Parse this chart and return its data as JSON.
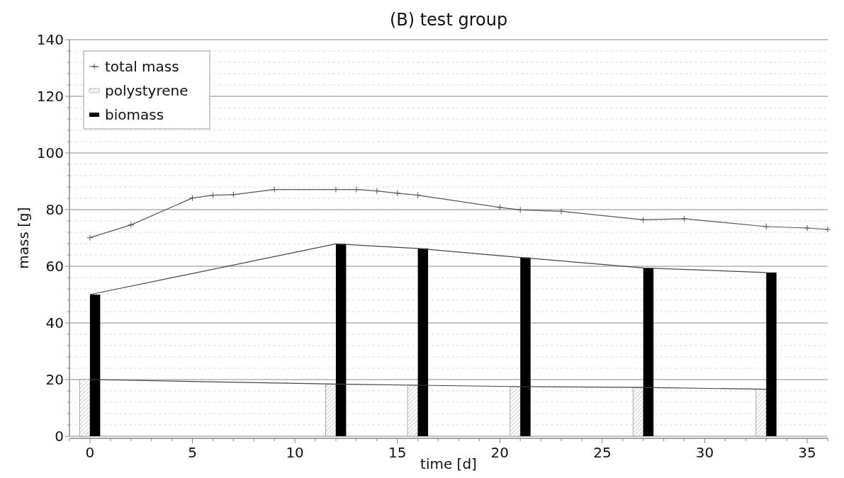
{
  "chart_data": {
    "type": "line",
    "title": "(B) test group",
    "xlabel": "time [d]",
    "ylabel": "mass [g]",
    "xlim": [
      -1,
      36
    ],
    "xticks": [
      {
        "value": -1,
        "label": null
      },
      0,
      {
        "value": 1,
        "label": null
      },
      {
        "value": 2,
        "label": null
      },
      {
        "value": 3,
        "label": null
      },
      {
        "value": 4,
        "label": null
      },
      5,
      {
        "value": 6,
        "label": null
      },
      {
        "value": 7,
        "label": null
      },
      {
        "value": 8,
        "label": null
      },
      {
        "value": 9,
        "label": null
      },
      10,
      {
        "value": 11,
        "label": null
      },
      {
        "value": 12,
        "label": null
      },
      {
        "value": 13,
        "label": null
      },
      {
        "value": 14,
        "label": null
      },
      15,
      {
        "value": 16,
        "label": null
      },
      {
        "value": 17,
        "label": null
      },
      {
        "value": 18,
        "label": null
      },
      {
        "value": 19,
        "label": null
      },
      20,
      {
        "value": 21,
        "label": null
      },
      {
        "value": 22,
        "label": null
      },
      {
        "value": 23,
        "label": null
      },
      {
        "value": 24,
        "label": null
      },
      25,
      {
        "value": 26,
        "label": null
      },
      {
        "value": 27,
        "label": null
      },
      {
        "value": 28,
        "label": null
      },
      {
        "value": 29,
        "label": null
      },
      30,
      {
        "value": 31,
        "label": null
      },
      {
        "value": 32,
        "label": null
      },
      {
        "value": 33,
        "label": null
      },
      {
        "value": 34,
        "label": null
      },
      35,
      {
        "value": 36,
        "label": null
      }
    ],
    "ylim": [
      0,
      140
    ],
    "yticks": [
      0,
      {
        "value": 4,
        "label": null
      },
      {
        "value": 8,
        "label": null
      },
      {
        "value": 12,
        "label": null
      },
      {
        "value": 16,
        "label": null
      },
      20,
      {
        "value": 24,
        "label": null
      },
      {
        "value": 28,
        "label": null
      },
      {
        "value": 32,
        "label": null
      },
      {
        "value": 36,
        "label": null
      },
      40,
      {
        "value": 44,
        "label": null
      },
      {
        "value": 48,
        "label": null
      },
      {
        "value": 52,
        "label": null
      },
      {
        "value": 56,
        "label": null
      },
      60,
      {
        "value": 64,
        "label": null
      },
      {
        "value": 68,
        "label": null
      },
      {
        "value": 72,
        "label": null
      },
      {
        "value": 76,
        "label": null
      },
      80,
      {
        "value": 84,
        "label": null
      },
      {
        "value": 88,
        "label": null
      },
      {
        "value": 92,
        "label": null
      },
      {
        "value": 96,
        "label": null
      },
      100,
      {
        "value": 104,
        "label": null
      },
      {
        "value": 108,
        "label": null
      },
      {
        "value": 112,
        "label": null
      },
      {
        "value": 116,
        "label": null
      },
      120,
      {
        "value": 124,
        "label": null
      },
      {
        "value": 128,
        "label": null
      },
      {
        "value": 132,
        "label": null
      },
      {
        "value": 136,
        "label": null
      },
      140
    ],
    "grid": "y",
    "legend": "top left",
    "series": [
      {
        "name": "total mass",
        "color": "#555555",
        "marker": "cross",
        "x": [
          0,
          2,
          5,
          6,
          7,
          9,
          12,
          13,
          14,
          15,
          16,
          20,
          21,
          23,
          27,
          29,
          33,
          35,
          36
        ],
        "values": [
          70.1,
          74.6,
          84.1,
          85.1,
          85.3,
          87.1,
          87.1,
          87.1,
          86.6,
          85.8,
          85.1,
          80.8,
          79.9,
          79.4,
          76.4,
          76.8,
          74.0,
          73.5,
          73.0
        ]
      },
      {
        "name": "polystyrene",
        "type": "bar",
        "color": "#999999",
        "x": [
          0,
          12,
          16,
          21,
          27,
          33
        ],
        "values": [
          20,
          18.4,
          18.0,
          17.5,
          17.2,
          16.6
        ]
      },
      {
        "name": "biomass",
        "type": "bar",
        "color": "#000000",
        "x": [
          0,
          12,
          16,
          21,
          27,
          33
        ],
        "values": [
          50,
          67.9,
          66.3,
          63.1,
          59.4,
          57.8
        ]
      },
      {
        "color": "#444444",
        "marker": "none",
        "x": [
          0,
          12,
          16,
          21,
          27,
          33
        ],
        "values": [
          20,
          18.4,
          18.0,
          17.5,
          17.2,
          16.6
        ]
      },
      {
        "color": "#444444",
        "marker": "none",
        "x": [
          0,
          12,
          16,
          21,
          27,
          33
        ],
        "values": [
          50,
          67.9,
          66.3,
          63.1,
          59.4,
          57.8
        ]
      }
    ]
  }
}
